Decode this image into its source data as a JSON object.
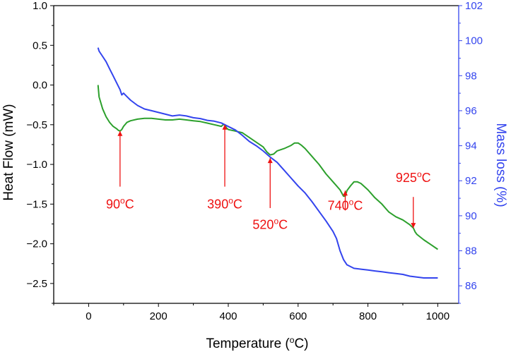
{
  "chart_data": {
    "type": "line",
    "xlabel": {
      "main": "Temperature (",
      "sup": "o",
      "tail": "C)"
    },
    "ylabel_left": "Heat Flow (mW)",
    "ylabel_right": "Mass loss (%)",
    "xlim": [
      -100,
      1060
    ],
    "ylim_left": [
      -2.75,
      1.0
    ],
    "ylim_right": [
      85,
      102
    ],
    "x_ticks": [
      0,
      200,
      400,
      600,
      800,
      1000
    ],
    "y_left_ticks": [
      1.0,
      0.5,
      0.0,
      -0.5,
      -1.0,
      -1.5,
      -2.0,
      -2.5
    ],
    "y_left_tick_labels": [
      "1.0",
      "0.5",
      "0.0",
      "−0.5",
      "−1.0",
      "−1.5",
      "−2.0",
      "−2.5"
    ],
    "y_right_ticks": [
      86,
      88,
      90,
      92,
      94,
      96,
      98,
      100,
      102
    ],
    "colors": {
      "heat_flow": "#2ca02c",
      "mass_loss": "#3344ee",
      "right_axis": "#3344ee",
      "annotation": "#ee1111",
      "axis": "#000000"
    },
    "series": [
      {
        "axis": "left",
        "x": [
          27,
          30,
          40,
          50,
          60,
          70,
          80,
          85,
          90,
          95,
          100,
          110,
          120,
          140,
          160,
          180,
          200,
          220,
          240,
          260,
          280,
          300,
          320,
          340,
          360,
          380,
          385,
          390,
          395,
          400,
          420,
          440,
          460,
          480,
          500,
          510,
          520,
          530,
          540,
          560,
          580,
          590,
          600,
          610,
          620,
          640,
          660,
          680,
          700,
          720,
          730,
          735,
          740,
          750,
          760,
          770,
          780,
          800,
          820,
          840,
          860,
          880,
          900,
          920,
          930,
          935,
          940,
          960,
          980,
          1000
        ],
        "y": [
          0.0,
          -0.15,
          -0.3,
          -0.4,
          -0.47,
          -0.52,
          -0.55,
          -0.57,
          -0.58,
          -0.56,
          -0.52,
          -0.47,
          -0.45,
          -0.43,
          -0.42,
          -0.42,
          -0.43,
          -0.44,
          -0.44,
          -0.43,
          -0.44,
          -0.45,
          -0.46,
          -0.48,
          -0.5,
          -0.52,
          -0.5,
          -0.5,
          -0.54,
          -0.56,
          -0.58,
          -0.6,
          -0.66,
          -0.72,
          -0.78,
          -0.84,
          -0.88,
          -0.87,
          -0.83,
          -0.8,
          -0.76,
          -0.73,
          -0.73,
          -0.76,
          -0.8,
          -0.9,
          -1.0,
          -1.12,
          -1.22,
          -1.32,
          -1.4,
          -1.4,
          -1.33,
          -1.27,
          -1.22,
          -1.22,
          -1.24,
          -1.32,
          -1.42,
          -1.5,
          -1.6,
          -1.66,
          -1.7,
          -1.76,
          -1.8,
          -1.85,
          -1.88,
          -1.95,
          -2.01,
          -2.07
        ]
      },
      {
        "axis": "right",
        "x": [
          27,
          30,
          40,
          50,
          60,
          70,
          80,
          90,
          95,
          100,
          110,
          120,
          140,
          160,
          180,
          200,
          220,
          240,
          260,
          280,
          300,
          320,
          340,
          360,
          380,
          400,
          420,
          440,
          460,
          480,
          500,
          520,
          540,
          560,
          580,
          600,
          620,
          640,
          660,
          680,
          700,
          710,
          720,
          730,
          740,
          760,
          780,
          800,
          820,
          840,
          860,
          880,
          900,
          920,
          940,
          960,
          980,
          1000
        ],
        "y": [
          99.6,
          99.4,
          99.1,
          98.8,
          98.4,
          98.0,
          97.6,
          97.2,
          96.9,
          97.0,
          96.8,
          96.6,
          96.3,
          96.1,
          96.0,
          95.9,
          95.8,
          95.7,
          95.75,
          95.7,
          95.6,
          95.55,
          95.45,
          95.4,
          95.3,
          95.1,
          94.9,
          94.6,
          94.25,
          94.0,
          93.7,
          93.35,
          93.05,
          92.6,
          92.15,
          91.7,
          91.3,
          90.8,
          90.25,
          89.7,
          89.1,
          88.7,
          88.0,
          87.5,
          87.2,
          87.0,
          86.95,
          86.9,
          86.85,
          86.8,
          86.75,
          86.7,
          86.65,
          86.55,
          86.5,
          86.45,
          86.45,
          86.45
        ]
      }
    ],
    "annotations": [
      {
        "label": "90",
        "deg": "o",
        "unit": "C",
        "x": 90,
        "y_tip": -0.58,
        "y_tail": -1.28,
        "label_y": -1.5
      },
      {
        "label": "390",
        "deg": "o",
        "unit": "C",
        "x": 390,
        "y_tip": -0.5,
        "y_tail": -1.28,
        "label_y": -1.5
      },
      {
        "label": "520",
        "deg": "o",
        "unit": "C",
        "x": 520,
        "y_tip": -0.92,
        "y_tail": -1.55,
        "label_y": -1.76
      },
      {
        "label": "740",
        "deg": "o",
        "unit": "C",
        "x": 735,
        "y_tip": -1.33,
        "y_tail": -1.58,
        "label_y": -1.52
      },
      {
        "label": "925",
        "deg": "o",
        "unit": "C",
        "x": 930,
        "y_tip": -1.8,
        "y_tail": -1.41,
        "label_y": -1.17
      }
    ]
  }
}
